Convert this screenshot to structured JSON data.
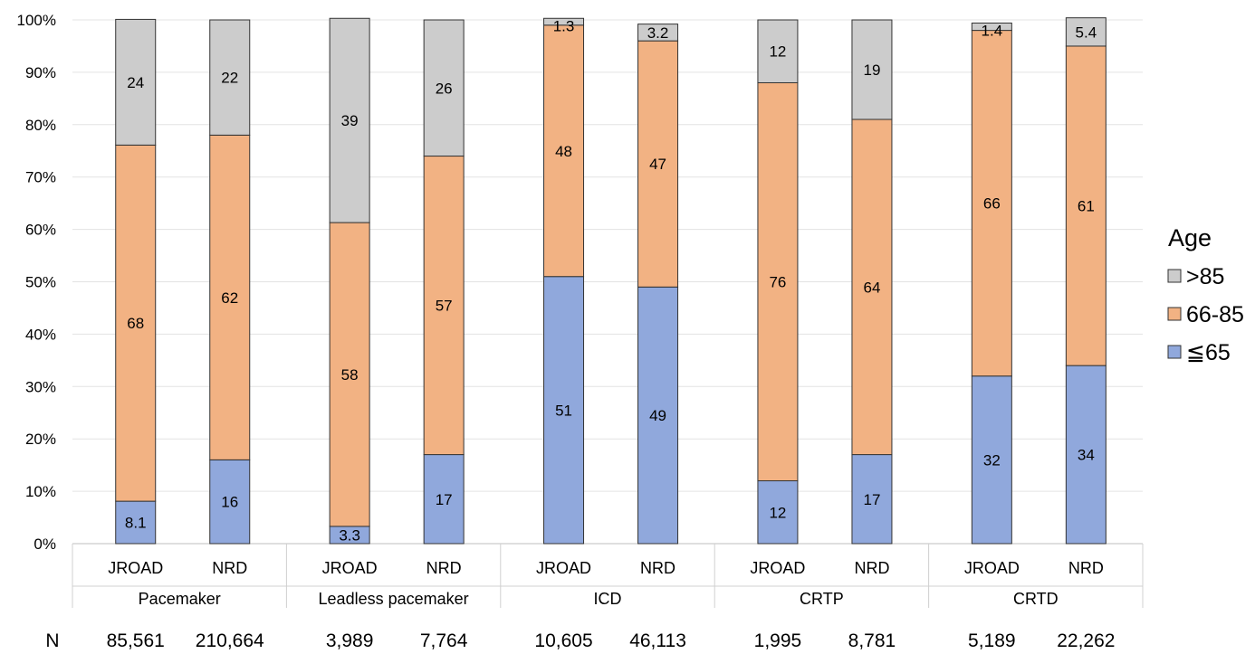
{
  "chart_data": {
    "type": "bar",
    "stacked": true,
    "percent": true,
    "groups": [
      "Pacemaker",
      "Leadless pacemaker",
      "ICD",
      "CRTP",
      "CRTD"
    ],
    "categories": [
      "JROAD",
      "NRD",
      "JROAD",
      "NRD",
      "JROAD",
      "NRD",
      "JROAD",
      "NRD",
      "JROAD",
      "NRD"
    ],
    "n_label": "N",
    "n_values": [
      "85,561",
      "210,664",
      "3,989",
      "7,764",
      "10,605",
      "46,113",
      "1,995",
      "8,781",
      "5,189",
      "22,262"
    ],
    "series": [
      {
        "name": "≦65",
        "values": [
          8.1,
          16,
          3.3,
          17,
          51,
          49,
          12,
          17,
          32,
          34
        ],
        "labels": [
          "8.1",
          "16",
          "3.3",
          "17",
          "51",
          "49",
          "12",
          "17",
          "32",
          "34"
        ],
        "color": "#90a8dc"
      },
      {
        "name": "66-85",
        "values": [
          68,
          62,
          58,
          57,
          48,
          47,
          76,
          64,
          66,
          61
        ],
        "labels": [
          "68",
          "62",
          "58",
          "57",
          "48",
          "47",
          "76",
          "64",
          "66",
          "61"
        ],
        "color": "#f2b283"
      },
      {
        "name": ">85",
        "values": [
          24,
          22,
          39,
          26,
          1.3,
          3.2,
          12,
          19,
          1.4,
          5.4
        ],
        "labels": [
          "24",
          "22",
          "39",
          "26",
          "1.3",
          "3.2",
          "12",
          "19",
          "1.4",
          "5.4"
        ],
        "color": "#cccccc"
      }
    ],
    "ylim": [
      0,
      100
    ],
    "yticks": [
      "0%",
      "10%",
      "20%",
      "30%",
      "40%",
      "50%",
      "60%",
      "70%",
      "80%",
      "90%",
      "100%"
    ],
    "grid": true,
    "legend": {
      "title": "Age",
      "position": "right",
      "order": [
        ">85",
        "66-85",
        "≦65"
      ]
    }
  }
}
